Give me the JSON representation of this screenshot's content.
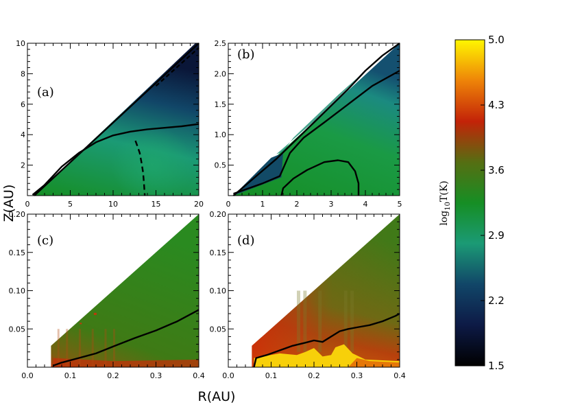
{
  "chart_data": {
    "type": "heatmap",
    "ylabel": "Z(AU)",
    "xlabel": "R(AU)",
    "colorbar": {
      "label_main": "log",
      "label_sub": "10",
      "label_tail": "T(K)",
      "ticks": [
        "5.0",
        "4.3",
        "3.6",
        "2.9",
        "2.2",
        "1.5"
      ],
      "range": [
        1.5,
        5.0
      ],
      "colors": [
        "#000000",
        "#0d1a46",
        "#114668",
        "#1b9a75",
        "#168e24",
        "#566e12",
        "#c32308",
        "#ee8408",
        "#fff700"
      ]
    },
    "panels": [
      {
        "label": "(a)",
        "xlim": [
          0,
          20
        ],
        "ylim": [
          0,
          10
        ],
        "xticks": [
          "0",
          "5",
          "10",
          "15",
          "20"
        ],
        "yticks": [
          "2",
          "4",
          "6",
          "8",
          "10"
        ],
        "show_xticklabels": true,
        "wedge": [
          [
            0.8,
            0
          ],
          [
            20,
            0
          ],
          [
            20,
            10
          ],
          [
            19.6,
            10
          ]
        ],
        "solid_line": [
          [
            0.6,
            0.05
          ],
          [
            2,
            0.7
          ],
          [
            4,
            1.9
          ],
          [
            6,
            2.8
          ],
          [
            8,
            3.5
          ],
          [
            10,
            3.95
          ],
          [
            12,
            4.2
          ],
          [
            14,
            4.35
          ],
          [
            16,
            4.45
          ],
          [
            18,
            4.55
          ],
          [
            20,
            4.7
          ]
        ],
        "surface_line": [
          [
            0.8,
            0
          ],
          [
            20,
            10
          ]
        ],
        "dashed_line": [
          [
            12.6,
            3.6
          ],
          [
            12.8,
            3.3
          ],
          [
            13.1,
            2.8
          ],
          [
            13.3,
            2.2
          ],
          [
            13.5,
            1.5
          ],
          [
            13.6,
            0.8
          ],
          [
            13.7,
            0
          ]
        ],
        "dashed_top": [
          [
            15,
            7.2
          ],
          [
            17,
            8.2
          ],
          [
            19,
            9.2
          ],
          [
            20,
            9.7
          ]
        ]
      },
      {
        "label": "(b)",
        "xlim": [
          0,
          5
        ],
        "ylim": [
          0,
          2.5
        ],
        "xticks": [
          "0",
          "1",
          "2",
          "3",
          "4",
          "5"
        ],
        "yticks": [
          "0.5",
          "1.0",
          "1.5",
          "2.0",
          "2.5"
        ],
        "show_xticklabels": true,
        "wedge": [
          [
            0.15,
            0
          ],
          [
            5,
            0
          ],
          [
            5,
            2.5
          ],
          [
            5,
            2.5
          ]
        ],
        "solid_line": [
          [
            0.15,
            0.03
          ],
          [
            1.0,
            0.2
          ],
          [
            1.5,
            0.32
          ],
          [
            1.55,
            0.38
          ],
          [
            1.8,
            0.7
          ],
          [
            2.2,
            0.95
          ],
          [
            2.8,
            1.2
          ],
          [
            3.5,
            1.5
          ],
          [
            4.2,
            1.8
          ],
          [
            5,
            2.05
          ]
        ],
        "surface_line": [
          [
            0.15,
            0
          ],
          [
            1.4,
            0.6
          ],
          [
            2.5,
            1.2
          ],
          [
            3.5,
            1.75
          ],
          [
            4.0,
            2.05
          ],
          [
            4.5,
            2.3
          ],
          [
            5,
            2.5
          ]
        ],
        "inner_line": [
          [
            1.55,
            0
          ],
          [
            1.6,
            0.12
          ],
          [
            1.9,
            0.28
          ],
          [
            2.3,
            0.42
          ],
          [
            2.8,
            0.55
          ],
          [
            3.2,
            0.58
          ],
          [
            3.5,
            0.55
          ],
          [
            3.7,
            0.4
          ],
          [
            3.8,
            0.2
          ],
          [
            3.8,
            0
          ]
        ]
      },
      {
        "label": "(c)",
        "xlim": [
          0,
          0.4
        ],
        "ylim": [
          0,
          0.2
        ],
        "xticks": [
          "0.0",
          "0.1",
          "0.2",
          "0.3",
          "0.4"
        ],
        "yticks": [
          "0.05",
          "0.10",
          "0.15",
          "0.20"
        ],
        "show_xticklabels": true,
        "wedge": [
          [
            0.055,
            0
          ],
          [
            0.4,
            0
          ],
          [
            0.4,
            0.2
          ],
          [
            0.055,
            0.028
          ]
        ],
        "solid_line": [
          [
            0.06,
            0.002
          ],
          [
            0.08,
            0.006
          ],
          [
            0.12,
            0.012
          ],
          [
            0.16,
            0.018
          ],
          [
            0.2,
            0.027
          ],
          [
            0.25,
            0.038
          ],
          [
            0.3,
            0.048
          ],
          [
            0.35,
            0.06
          ],
          [
            0.4,
            0.075
          ]
        ]
      },
      {
        "label": "(d)",
        "xlim": [
          0,
          0.4
        ],
        "ylim": [
          0,
          0.2
        ],
        "xticks": [
          "0.0",
          "0.1",
          "0.2",
          "0.3",
          "0.4"
        ],
        "yticks": [
          "0.05",
          "0.10",
          "0.15",
          "0.20"
        ],
        "show_xticklabels": true,
        "wedge": [
          [
            0.055,
            0
          ],
          [
            0.4,
            0
          ],
          [
            0.4,
            0.2
          ],
          [
            0.055,
            0.028
          ]
        ],
        "solid_line": [
          [
            0.06,
            0
          ],
          [
            0.065,
            0.012
          ],
          [
            0.09,
            0.016
          ],
          [
            0.12,
            0.022
          ],
          [
            0.15,
            0.028
          ],
          [
            0.18,
            0.032
          ],
          [
            0.2,
            0.035
          ],
          [
            0.22,
            0.033
          ],
          [
            0.24,
            0.04
          ],
          [
            0.26,
            0.047
          ],
          [
            0.28,
            0.05
          ],
          [
            0.3,
            0.052
          ],
          [
            0.33,
            0.055
          ],
          [
            0.36,
            0.06
          ],
          [
            0.39,
            0.067
          ],
          [
            0.4,
            0.07
          ]
        ]
      }
    ]
  }
}
